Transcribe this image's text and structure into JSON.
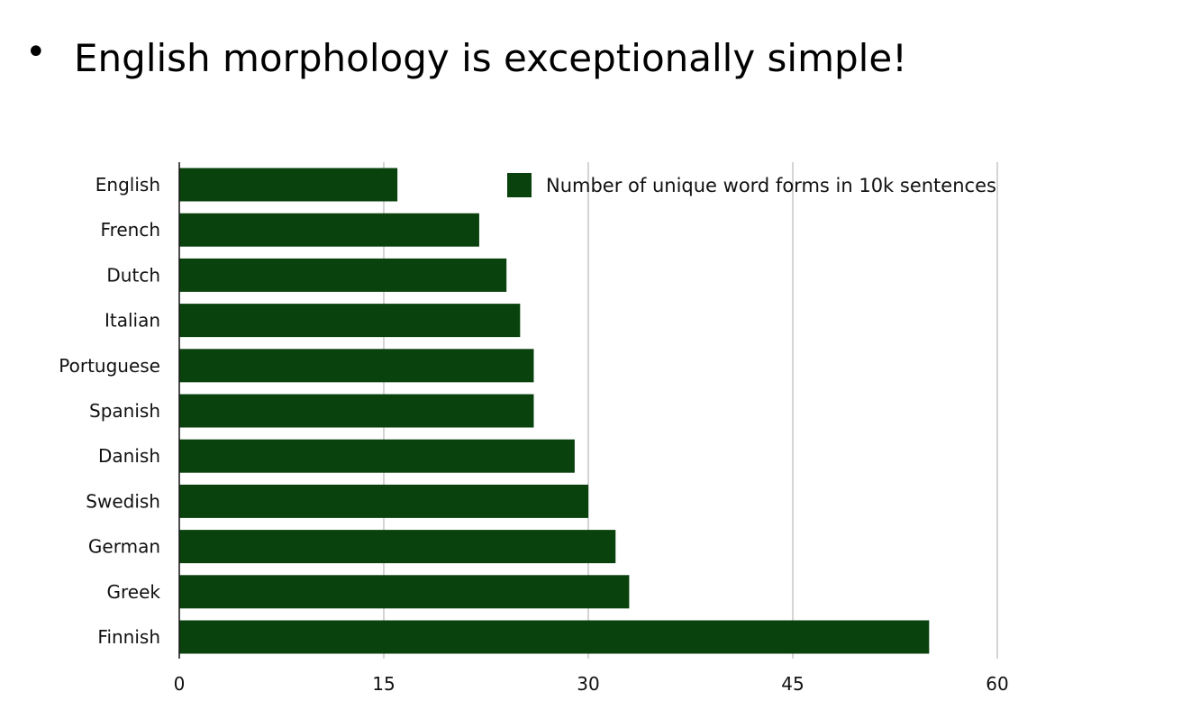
{
  "slide": {
    "bullet": "•",
    "title": "English morphology is exceptionally simple!"
  },
  "colors": {
    "bar": "#0a420e",
    "grid": "#b8b8b8",
    "axis": "#111111"
  },
  "chart_data": {
    "type": "bar",
    "orientation": "horizontal",
    "categories": [
      "English",
      "French",
      "Dutch",
      "Italian",
      "Portuguese",
      "Spanish",
      "Danish",
      "Swedish",
      "German",
      "Greek",
      "Finnish"
    ],
    "series": [
      {
        "name": "Number of unique word forms in 10k sentences",
        "values": [
          16,
          22,
          24,
          25,
          26,
          26,
          29,
          30,
          32,
          33,
          55
        ]
      }
    ],
    "xticks": [
      "0",
      "15",
      "30",
      "45",
      "60"
    ],
    "xlim": [
      0,
      60
    ],
    "grid": "vertical",
    "legend_position": "top-right"
  }
}
